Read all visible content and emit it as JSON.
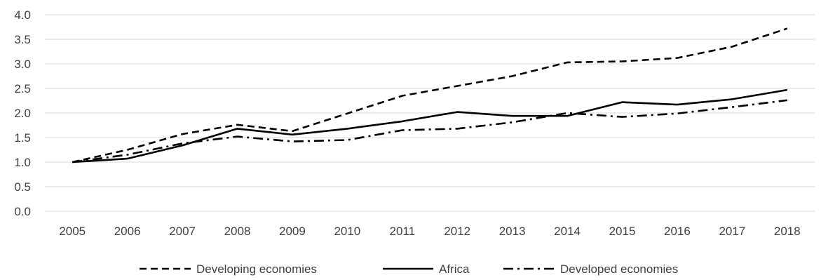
{
  "chart_data": {
    "type": "line",
    "title": "",
    "xlabel": "",
    "ylabel": "",
    "x": [
      "2005",
      "2006",
      "2007",
      "2008",
      "2009",
      "2010",
      "2011",
      "2012",
      "2013",
      "2014",
      "2015",
      "2016",
      "2017",
      "2018"
    ],
    "ylim": [
      0,
      4
    ],
    "yticks": [
      "0.0",
      "0.5",
      "1.0",
      "1.5",
      "2.0",
      "2.5",
      "3.0",
      "3.5",
      "4.0"
    ],
    "grid": true,
    "legend_position": "bottom",
    "series": [
      {
        "name": "Developing economies",
        "style": "dashed",
        "color": "#000000",
        "values": [
          1.0,
          1.25,
          1.57,
          1.76,
          1.63,
          1.99,
          2.35,
          2.55,
          2.75,
          3.03,
          3.05,
          3.12,
          3.35,
          3.72
        ]
      },
      {
        "name": "Africa",
        "style": "solid",
        "color": "#000000",
        "values": [
          1.0,
          1.07,
          1.34,
          1.68,
          1.56,
          1.68,
          1.83,
          2.02,
          1.94,
          1.94,
          2.22,
          2.17,
          2.28,
          2.47
        ]
      },
      {
        "name": "Developed economies",
        "style": "dash-dot",
        "color": "#000000",
        "values": [
          1.0,
          1.15,
          1.38,
          1.52,
          1.42,
          1.45,
          1.65,
          1.68,
          1.81,
          2.0,
          1.92,
          1.99,
          2.12,
          2.26
        ]
      }
    ]
  }
}
